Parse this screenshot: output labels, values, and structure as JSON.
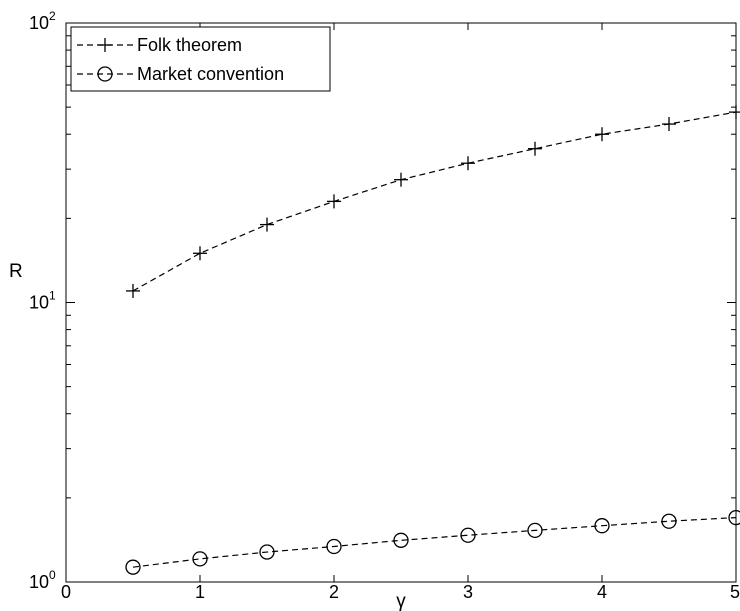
{
  "chart_data": {
    "type": "line",
    "title": "",
    "xlabel": "γ",
    "ylabel": "R",
    "xlim": [
      0,
      5
    ],
    "ylim": [
      1,
      100
    ],
    "yscale": "log",
    "grid": false,
    "legend": "top-left",
    "x_ticks": [
      {
        "value": 0,
        "label": "0"
      },
      {
        "value": 1,
        "label": "1"
      },
      {
        "value": 2,
        "label": "2"
      },
      {
        "value": 3,
        "label": "3"
      },
      {
        "value": 4,
        "label": "4"
      },
      {
        "value": 5,
        "label": "5"
      }
    ],
    "y_ticks": [
      {
        "value": 1,
        "base": "10",
        "exp": "0"
      },
      {
        "value": 10,
        "base": "10",
        "exp": "1"
      },
      {
        "value": 100,
        "base": "10",
        "exp": "2"
      }
    ],
    "x": [
      0.5,
      1.0,
      1.5,
      2.0,
      2.5,
      3.0,
      3.5,
      4.0,
      4.5,
      5.0
    ],
    "series": [
      {
        "name": "Folk theorem",
        "marker": "plus",
        "line": "dashed",
        "color": "#000000",
        "values": [
          11.0,
          15.0,
          19.0,
          23.0,
          27.5,
          31.5,
          35.5,
          40.0,
          43.5,
          48.0
        ]
      },
      {
        "name": "Market convention",
        "marker": "circle",
        "line": "dashed",
        "color": "#000000",
        "values": [
          1.13,
          1.21,
          1.28,
          1.34,
          1.41,
          1.47,
          1.53,
          1.59,
          1.65,
          1.7
        ]
      }
    ]
  }
}
